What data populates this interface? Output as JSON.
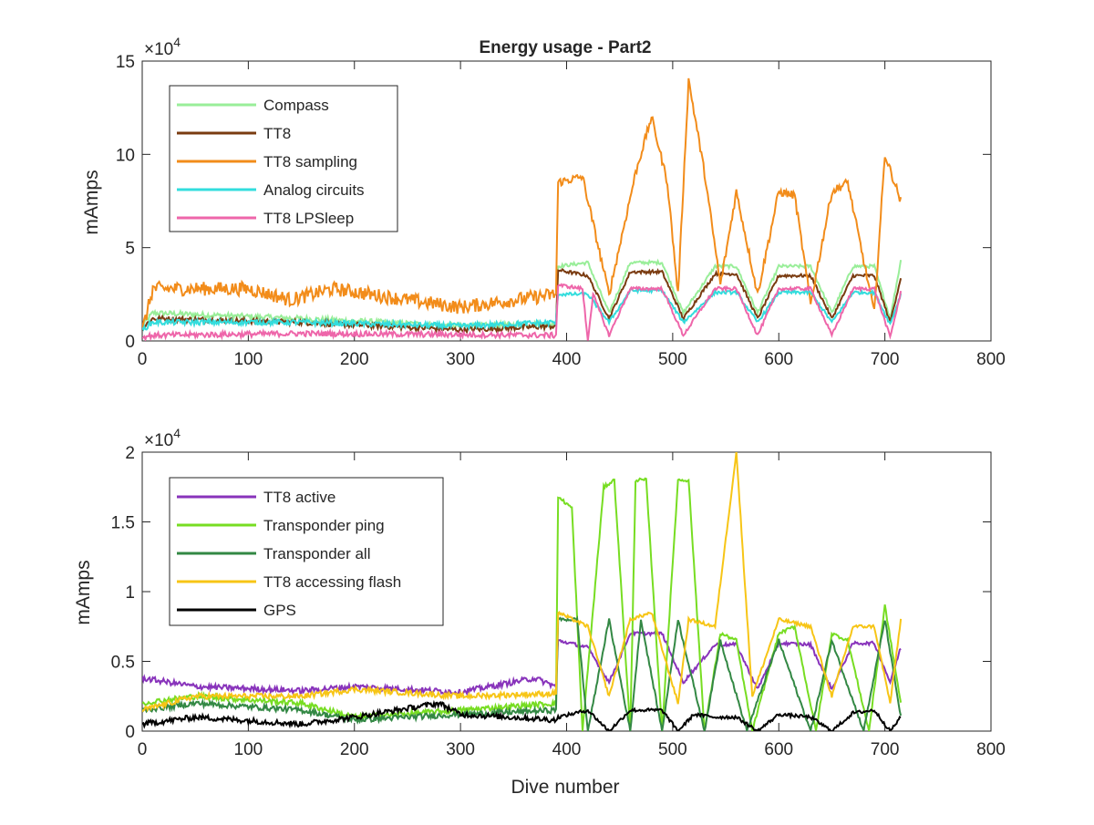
{
  "chart_data": [
    {
      "type": "line",
      "title": "Energy usage - Part2",
      "xlabel": "",
      "ylabel": "mAmps",
      "y_exponent_label": "×10",
      "y_exponent_power": "4",
      "xlim": [
        0,
        800
      ],
      "ylim": [
        0,
        150000
      ],
      "x_ticks": [
        "0",
        "100",
        "200",
        "300",
        "400",
        "500",
        "600",
        "700",
        "800"
      ],
      "y_ticks": [
        "0",
        "5",
        "10",
        "15"
      ],
      "legend_position": "top-left",
      "grid": false,
      "series": [
        {
          "name": "Compass",
          "color": "#99ee99",
          "keypoints": [
            [
              0,
              8000
            ],
            [
              10,
              15000
            ],
            [
              150,
              12000
            ],
            [
              300,
              8000
            ],
            [
              390,
              9000
            ],
            [
              392,
              40000
            ],
            [
              420,
              42000
            ],
            [
              440,
              15000
            ],
            [
              460,
              42000
            ],
            [
              490,
              42000
            ],
            [
              510,
              15000
            ],
            [
              540,
              40000
            ],
            [
              560,
              40000
            ],
            [
              580,
              15000
            ],
            [
              600,
              40000
            ],
            [
              630,
              40000
            ],
            [
              650,
              15000
            ],
            [
              670,
              40000
            ],
            [
              690,
              40000
            ],
            [
              705,
              12000
            ],
            [
              715,
              43000
            ]
          ]
        },
        {
          "name": "TT8",
          "color": "#7a3b10",
          "keypoints": [
            [
              0,
              7000
            ],
            [
              10,
              12000
            ],
            [
              150,
              10000
            ],
            [
              300,
              6000
            ],
            [
              390,
              8000
            ],
            [
              392,
              38000
            ],
            [
              420,
              35000
            ],
            [
              440,
              12000
            ],
            [
              460,
              37000
            ],
            [
              490,
              37000
            ],
            [
              510,
              12000
            ],
            [
              540,
              36000
            ],
            [
              560,
              36000
            ],
            [
              580,
              12000
            ],
            [
              600,
              35000
            ],
            [
              630,
              35000
            ],
            [
              650,
              12000
            ],
            [
              670,
              35000
            ],
            [
              690,
              35000
            ],
            [
              705,
              10000
            ],
            [
              715,
              34000
            ]
          ]
        },
        {
          "name": "TT8 sampling",
          "color": "#f28c1a",
          "keypoints": [
            [
              0,
              5000
            ],
            [
              10,
              28000
            ],
            [
              100,
              28000
            ],
            [
              140,
              22000
            ],
            [
              180,
              28000
            ],
            [
              250,
              22000
            ],
            [
              300,
              18000
            ],
            [
              390,
              25000
            ],
            [
              392,
              85000
            ],
            [
              415,
              88000
            ],
            [
              440,
              25000
            ],
            [
              465,
              90000
            ],
            [
              480,
              120000
            ],
            [
              495,
              85000
            ],
            [
              505,
              25000
            ],
            [
              515,
              140000
            ],
            [
              530,
              90000
            ],
            [
              545,
              30000
            ],
            [
              560,
              80000
            ],
            [
              580,
              25000
            ],
            [
              600,
              80000
            ],
            [
              615,
              78000
            ],
            [
              630,
              20000
            ],
            [
              650,
              80000
            ],
            [
              665,
              85000
            ],
            [
              690,
              15000
            ],
            [
              700,
              100000
            ],
            [
              715,
              75000
            ]
          ]
        },
        {
          "name": "Analog circuits",
          "color": "#33dddd",
          "keypoints": [
            [
              0,
              6000
            ],
            [
              10,
              10000
            ],
            [
              150,
              10000
            ],
            [
              300,
              8000
            ],
            [
              390,
              10000
            ],
            [
              392,
              25000
            ],
            [
              420,
              25000
            ],
            [
              440,
              10000
            ],
            [
              460,
              27000
            ],
            [
              490,
              27000
            ],
            [
              510,
              10000
            ],
            [
              540,
              26000
            ],
            [
              560,
              26000
            ],
            [
              580,
              10000
            ],
            [
              600,
              26000
            ],
            [
              630,
              26000
            ],
            [
              650,
              10000
            ],
            [
              670,
              26000
            ],
            [
              690,
              26000
            ],
            [
              705,
              9000
            ],
            [
              715,
              25000
            ]
          ]
        },
        {
          "name": "TT8 LPSleep",
          "color": "#ee66aa",
          "keypoints": [
            [
              0,
              2000
            ],
            [
              10,
              3000
            ],
            [
              150,
              4000
            ],
            [
              390,
              3000
            ],
            [
              392,
              30000
            ],
            [
              415,
              28000
            ],
            [
              420,
              500
            ],
            [
              425,
              25000
            ],
            [
              440,
              3000
            ],
            [
              460,
              28000
            ],
            [
              490,
              28000
            ],
            [
              510,
              3000
            ],
            [
              540,
              28000
            ],
            [
              560,
              28000
            ],
            [
              580,
              3000
            ],
            [
              600,
              28000
            ],
            [
              630,
              28000
            ],
            [
              650,
              3000
            ],
            [
              670,
              28000
            ],
            [
              690,
              28000
            ],
            [
              705,
              2000
            ],
            [
              715,
              26000
            ]
          ]
        }
      ]
    },
    {
      "type": "line",
      "title": "",
      "xlabel": "Dive number",
      "ylabel": "mAmps",
      "y_exponent_label": "×10",
      "y_exponent_power": "4",
      "xlim": [
        0,
        800
      ],
      "ylim": [
        0,
        20000
      ],
      "x_ticks": [
        "0",
        "100",
        "200",
        "300",
        "400",
        "500",
        "600",
        "700",
        "800"
      ],
      "y_ticks": [
        "0",
        "0.5",
        "1",
        "1.5",
        "2"
      ],
      "legend_position": "top-left",
      "grid": false,
      "series": [
        {
          "name": "TT8 active",
          "color": "#8833bb",
          "keypoints": [
            [
              0,
              3800
            ],
            [
              50,
              3200
            ],
            [
              150,
              2900
            ],
            [
              200,
              3200
            ],
            [
              300,
              2800
            ],
            [
              370,
              3800
            ],
            [
              390,
              3200
            ],
            [
              392,
              6500
            ],
            [
              420,
              6000
            ],
            [
              440,
              3500
            ],
            [
              460,
              7000
            ],
            [
              490,
              7000
            ],
            [
              510,
              3500
            ],
            [
              540,
              6200
            ],
            [
              560,
              6200
            ],
            [
              580,
              3000
            ],
            [
              600,
              6300
            ],
            [
              630,
              6200
            ],
            [
              650,
              3000
            ],
            [
              670,
              6300
            ],
            [
              690,
              6300
            ],
            [
              705,
              3500
            ],
            [
              715,
              6000
            ]
          ]
        },
        {
          "name": "Transponder ping",
          "color": "#77dd22",
          "keypoints": [
            [
              0,
              2000
            ],
            [
              50,
              2500
            ],
            [
              150,
              2000
            ],
            [
              200,
              1000
            ],
            [
              300,
              1500
            ],
            [
              390,
              2000
            ],
            [
              392,
              16800
            ],
            [
              405,
              16000
            ],
            [
              415,
              0
            ],
            [
              435,
              17500
            ],
            [
              445,
              18000
            ],
            [
              460,
              0
            ],
            [
              465,
              18000
            ],
            [
              475,
              18000
            ],
            [
              490,
              0
            ],
            [
              505,
              18000
            ],
            [
              515,
              18000
            ],
            [
              530,
              0
            ],
            [
              545,
              7000
            ],
            [
              560,
              6500
            ],
            [
              575,
              0
            ],
            [
              600,
              7000
            ],
            [
              615,
              7500
            ],
            [
              635,
              0
            ],
            [
              650,
              7000
            ],
            [
              665,
              6500
            ],
            [
              685,
              0
            ],
            [
              700,
              9000
            ],
            [
              715,
              2000
            ]
          ]
        },
        {
          "name": "Transponder all",
          "color": "#338844",
          "keypoints": [
            [
              0,
              1500
            ],
            [
              50,
              2000
            ],
            [
              150,
              1500
            ],
            [
              200,
              800
            ],
            [
              300,
              1200
            ],
            [
              390,
              1500
            ],
            [
              392,
              8000
            ],
            [
              410,
              8000
            ],
            [
              420,
              0
            ],
            [
              440,
              8000
            ],
            [
              460,
              0
            ],
            [
              470,
              8000
            ],
            [
              490,
              0
            ],
            [
              505,
              8000
            ],
            [
              530,
              0
            ],
            [
              545,
              6500
            ],
            [
              570,
              0
            ],
            [
              600,
              6500
            ],
            [
              630,
              0
            ],
            [
              650,
              6500
            ],
            [
              680,
              0
            ],
            [
              700,
              8000
            ],
            [
              715,
              1000
            ]
          ]
        },
        {
          "name": "TT8 accessing flash",
          "color": "#f7c516",
          "keypoints": [
            [
              0,
              1500
            ],
            [
              50,
              2500
            ],
            [
              150,
              2500
            ],
            [
              200,
              3000
            ],
            [
              300,
              2500
            ],
            [
              390,
              2700
            ],
            [
              392,
              8500
            ],
            [
              420,
              7500
            ],
            [
              440,
              2500
            ],
            [
              460,
              8000
            ],
            [
              480,
              8500
            ],
            [
              505,
              2000
            ],
            [
              515,
              8000
            ],
            [
              540,
              7500
            ],
            [
              560,
              20000
            ],
            [
              575,
              2500
            ],
            [
              600,
              8000
            ],
            [
              630,
              7500
            ],
            [
              650,
              2500
            ],
            [
              670,
              7500
            ],
            [
              690,
              7500
            ],
            [
              705,
              2000
            ],
            [
              715,
              8000
            ]
          ]
        },
        {
          "name": "GPS",
          "color": "#000000",
          "keypoints": [
            [
              0,
              500
            ],
            [
              50,
              1000
            ],
            [
              150,
              500
            ],
            [
              200,
              1000
            ],
            [
              280,
              2000
            ],
            [
              300,
              1200
            ],
            [
              390,
              800
            ],
            [
              392,
              1000
            ],
            [
              420,
              1500
            ],
            [
              440,
              0
            ],
            [
              460,
              1500
            ],
            [
              490,
              1500
            ],
            [
              505,
              0
            ],
            [
              520,
              1200
            ],
            [
              540,
              1000
            ],
            [
              560,
              1000
            ],
            [
              580,
              0
            ],
            [
              600,
              1200
            ],
            [
              630,
              1000
            ],
            [
              650,
              0
            ],
            [
              670,
              1300
            ],
            [
              690,
              1500
            ],
            [
              705,
              0
            ],
            [
              715,
              1000
            ]
          ]
        }
      ]
    }
  ]
}
